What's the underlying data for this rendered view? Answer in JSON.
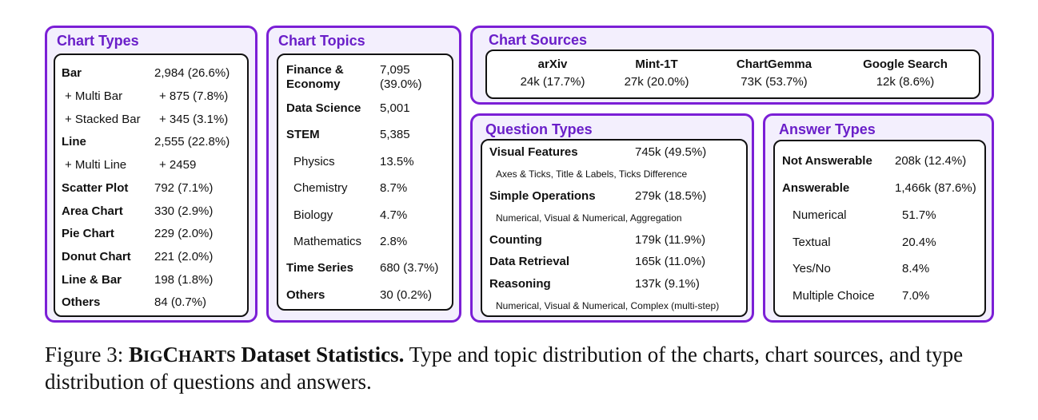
{
  "chart_types": {
    "title": "Chart Types",
    "rows": [
      {
        "label": "Bar",
        "value": "2,984 (26.6%)",
        "bold": true
      },
      {
        "label": "+ Multi Bar",
        "value": "+ 875 (7.8%)",
        "bold": false
      },
      {
        "label": "+ Stacked Bar",
        "value": "+ 345 (3.1%)",
        "bold": false
      },
      {
        "label": "Line",
        "value": "2,555 (22.8%)",
        "bold": true
      },
      {
        "label": "+ Multi Line",
        "value": "+ 2459",
        "bold": false
      },
      {
        "label": "Scatter Plot",
        "value": "792 (7.1%)",
        "bold": true
      },
      {
        "label": "Area Chart",
        "value": "330 (2.9%)",
        "bold": true
      },
      {
        "label": "Pie Chart",
        "value": "229 (2.0%)",
        "bold": true
      },
      {
        "label": "Donut Chart",
        "value": "221 (2.0%)",
        "bold": true
      },
      {
        "label": "Line & Bar",
        "value": "198 (1.8%)",
        "bold": true
      },
      {
        "label": "Others",
        "value": "84 (0.7%)",
        "bold": true
      }
    ]
  },
  "chart_topics": {
    "title": "Chart Topics",
    "rows": [
      {
        "label": "Finance & Economy",
        "value": "7,095 (39.0%)",
        "bold": true
      },
      {
        "label": "Data Science",
        "value": "5,001",
        "bold": true
      },
      {
        "label": "STEM",
        "value": "5,385",
        "bold": true
      },
      {
        "label": "Physics",
        "value": "13.5%",
        "bold": false
      },
      {
        "label": "Chemistry",
        "value": "8.7%",
        "bold": false
      },
      {
        "label": "Biology",
        "value": "4.7%",
        "bold": false
      },
      {
        "label": "Mathematics",
        "value": "2.8%",
        "bold": false
      },
      {
        "label": "Time Series",
        "value": "680 (3.7%)",
        "bold": true
      },
      {
        "label": "Others",
        "value": "30 (0.2%)",
        "bold": true
      }
    ]
  },
  "chart_sources": {
    "title": "Chart Sources",
    "items": [
      {
        "name": "arXiv",
        "value": "24k (17.7%)"
      },
      {
        "name": "Mint-1T",
        "value": "27k (20.0%)"
      },
      {
        "name": "ChartGemma",
        "value": "73K (53.7%)"
      },
      {
        "name": "Google Search",
        "value": "12k (8.6%)"
      }
    ]
  },
  "question_types": {
    "title": "Question Types",
    "rows": [
      {
        "label": "Visual Features",
        "value": "745k (49.5%)",
        "sub": "Axes & Ticks, Title & Labels, Ticks Difference"
      },
      {
        "label": "Simple Operations",
        "value": "279k (18.5%)",
        "sub": "Numerical, Visual & Numerical, Aggregation"
      },
      {
        "label": "Counting",
        "value": "179k (11.9%)",
        "sub": ""
      },
      {
        "label": "Data Retrieval",
        "value": "165k (11.0%)",
        "sub": ""
      },
      {
        "label": "Reasoning",
        "value": "137k (9.1%)",
        "sub": "Numerical, Visual & Numerical, Complex (multi-step)"
      }
    ]
  },
  "answer_types": {
    "title": "Answer Types",
    "rows": [
      {
        "label": "Not Answerable",
        "value": "208k (12.4%)",
        "bold": true
      },
      {
        "label": "Answerable",
        "value": "1,466k (87.6%)",
        "bold": true
      },
      {
        "label": "Numerical",
        "value": "51.7%",
        "bold": false
      },
      {
        "label": "Textual",
        "value": "20.4%",
        "bold": false
      },
      {
        "label": "Yes/No",
        "value": "8.4%",
        "bold": false
      },
      {
        "label": "Multiple Choice",
        "value": "7.0%",
        "bold": false
      }
    ]
  },
  "caption": {
    "prefix": "Figure 3: ",
    "name_big_b": "B",
    "name_small_ig": "IG",
    "name_big_c": "C",
    "name_small_harts": "HARTS",
    "bold_rest": " Dataset Statistics.",
    "text": " Type and topic distribution of the charts, chart sources, and type distribution of questions and answers."
  }
}
